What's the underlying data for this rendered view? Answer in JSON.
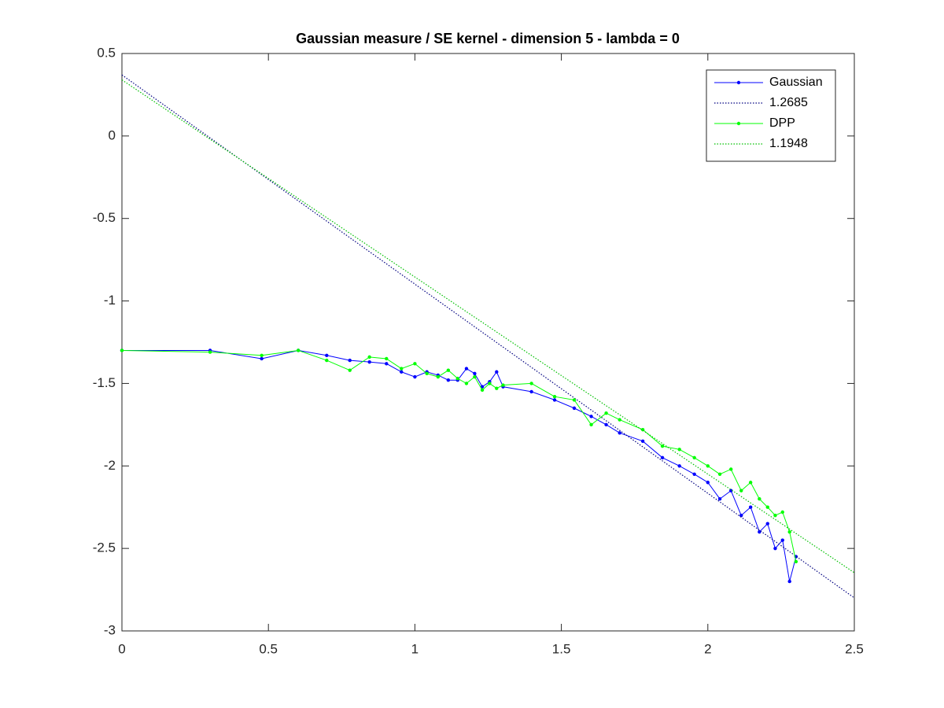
{
  "chart_data": {
    "type": "line",
    "title": "Gaussian measure / SE kernel - dimension 5 - lambda = 0",
    "xlim": [
      0,
      2.5
    ],
    "ylim": [
      -3,
      0.5
    ],
    "xticks": [
      0,
      0.5,
      1,
      1.5,
      2,
      2.5
    ],
    "yticks": [
      -3,
      -2.5,
      -2,
      -1.5,
      -1,
      -0.5,
      0,
      0.5
    ],
    "grid": false,
    "legend_position": "upper right",
    "series": [
      {
        "name": "Gaussian",
        "color": "#0000ff",
        "linestyle": "solid",
        "marker": true,
        "x": [
          0,
          0.301,
          0.477,
          0.602,
          0.699,
          0.778,
          0.845,
          0.903,
          0.954,
          1,
          1.041,
          1.079,
          1.114,
          1.146,
          1.176,
          1.204,
          1.23,
          1.255,
          1.279,
          1.301,
          1.398,
          1.477,
          1.544,
          1.602,
          1.653,
          1.699,
          1.778,
          1.845,
          1.903,
          1.954,
          2,
          2.041,
          2.079,
          2.114,
          2.146,
          2.176,
          2.204,
          2.23,
          2.255,
          2.279,
          2.301
        ],
        "values": [
          -1.3,
          -1.3,
          -1.35,
          -1.3,
          -1.33,
          -1.36,
          -1.37,
          -1.38,
          -1.43,
          -1.46,
          -1.43,
          -1.45,
          -1.48,
          -1.48,
          -1.41,
          -1.44,
          -1.52,
          -1.49,
          -1.43,
          -1.52,
          -1.55,
          -1.6,
          -1.65,
          -1.7,
          -1.75,
          -1.8,
          -1.85,
          -1.95,
          -2.0,
          -2.05,
          -2.1,
          -2.2,
          -2.15,
          -2.3,
          -2.25,
          -2.4,
          -2.35,
          -2.5,
          -2.45,
          -2.7,
          -2.55
        ]
      },
      {
        "name": "1.2685",
        "color": "#000080",
        "linestyle": "dotted",
        "marker": false,
        "x": [
          0,
          2.5
        ],
        "values": [
          0.37,
          -2.8
        ]
      },
      {
        "name": "DPP",
        "color": "#00ff00",
        "linestyle": "solid",
        "marker": true,
        "x": [
          0,
          0.301,
          0.477,
          0.602,
          0.699,
          0.778,
          0.845,
          0.903,
          0.954,
          1,
          1.041,
          1.079,
          1.114,
          1.146,
          1.176,
          1.204,
          1.23,
          1.255,
          1.279,
          1.301,
          1.398,
          1.477,
          1.544,
          1.602,
          1.653,
          1.699,
          1.778,
          1.845,
          1.903,
          1.954,
          2,
          2.041,
          2.079,
          2.114,
          2.146,
          2.176,
          2.204,
          2.23,
          2.255,
          2.279,
          2.301
        ],
        "values": [
          -1.3,
          -1.31,
          -1.33,
          -1.3,
          -1.36,
          -1.42,
          -1.34,
          -1.35,
          -1.41,
          -1.38,
          -1.44,
          -1.46,
          -1.42,
          -1.47,
          -1.5,
          -1.46,
          -1.54,
          -1.5,
          -1.53,
          -1.51,
          -1.5,
          -1.58,
          -1.6,
          -1.75,
          -1.68,
          -1.72,
          -1.78,
          -1.88,
          -1.9,
          -1.95,
          -2.0,
          -2.05,
          -2.02,
          -2.15,
          -2.1,
          -2.2,
          -2.25,
          -2.3,
          -2.28,
          -2.4,
          -2.58
        ]
      },
      {
        "name": "1.1948",
        "color": "#00c000",
        "linestyle": "dotted",
        "marker": false,
        "x": [
          0,
          2.5
        ],
        "values": [
          0.34,
          -2.647
        ]
      }
    ]
  }
}
